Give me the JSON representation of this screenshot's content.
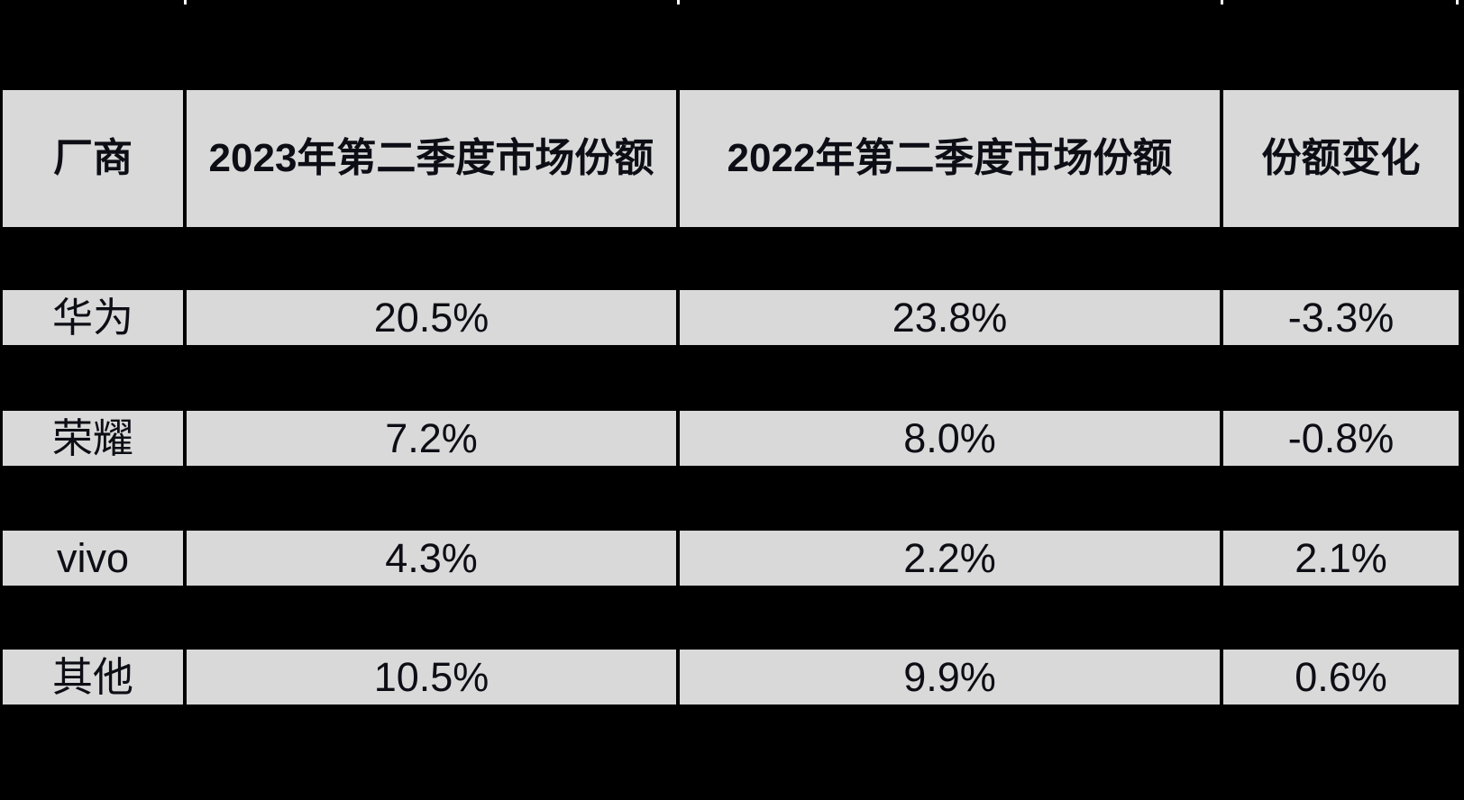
{
  "chart_data": {
    "type": "table",
    "title": "",
    "columns": [
      "厂商",
      "2023年第二季度市场份额",
      "2022年第二季度市场份额",
      "份额变化"
    ],
    "rows": [
      [
        "华为",
        "20.5%",
        "23.8%",
        "-3.3%"
      ],
      [
        "荣耀",
        "7.2%",
        "8.0%",
        "-0.8%"
      ],
      [
        "vivo",
        "4.3%",
        "2.2%",
        "2.1%"
      ],
      [
        "其他",
        "10.5%",
        "9.9%",
        "0.6%"
      ]
    ],
    "categories": [
      "华为",
      "荣耀",
      "vivo",
      "其他"
    ],
    "series": [
      {
        "name": "2023年第二季度市场份额",
        "values": [
          20.5,
          7.2,
          4.3,
          10.5
        ]
      },
      {
        "name": "2022年第二季度市场份额",
        "values": [
          23.8,
          8.0,
          2.2,
          9.9
        ]
      },
      {
        "name": "份额变化",
        "values": [
          -3.3,
          -0.8,
          2.1,
          0.6
        ]
      }
    ]
  },
  "colors": {
    "background": "#000000",
    "cell_background": "#d9d9d9",
    "text": "#0d0d15",
    "divider": "#000000",
    "top_tick": "#ffffff"
  }
}
